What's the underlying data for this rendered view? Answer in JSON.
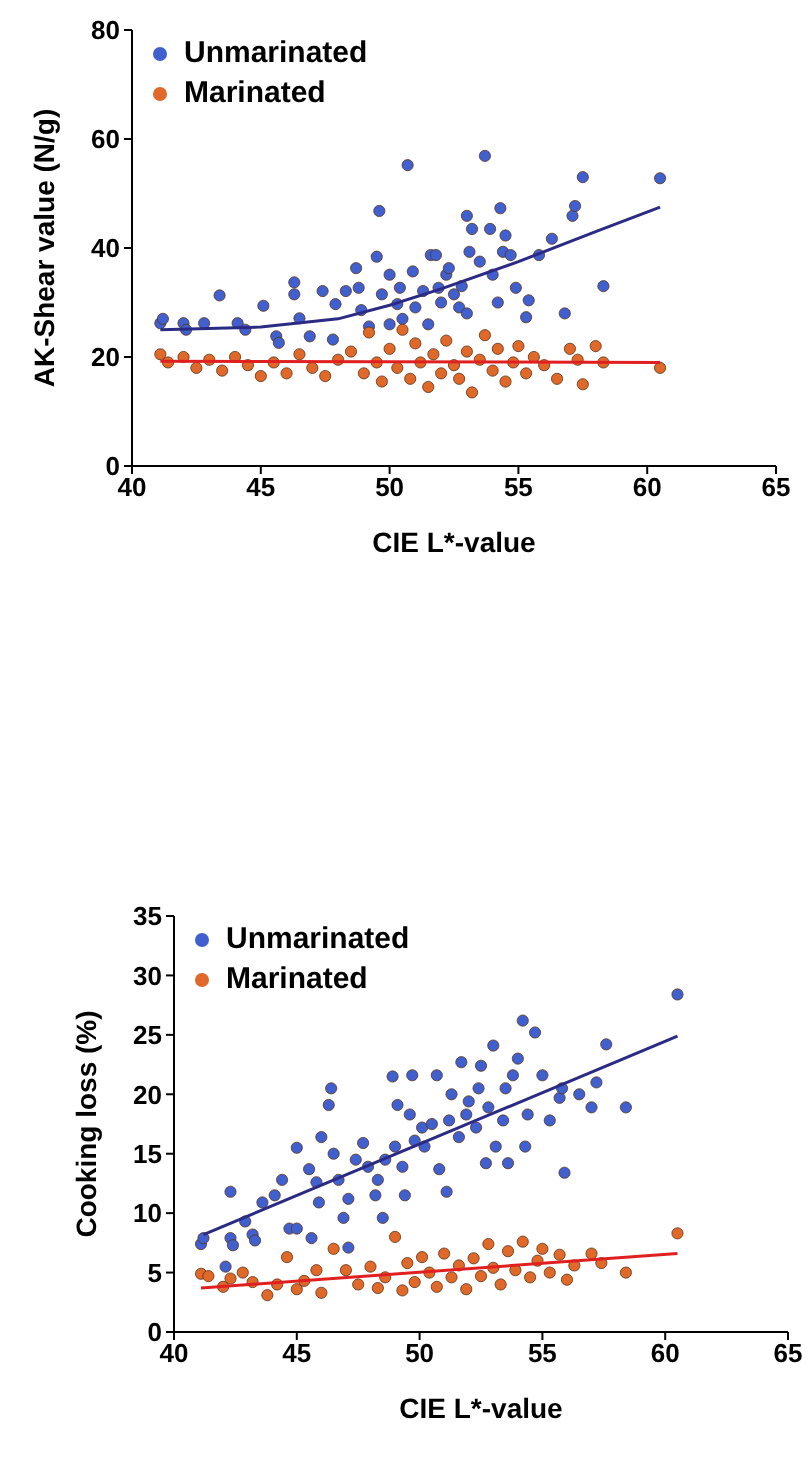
{
  "chart_data": [
    {
      "type": "scatter",
      "xlabel": "CIE L*-value",
      "ylabel": "AK-Shear value (N/g)",
      "xlim": [
        40,
        65
      ],
      "xticks": [
        40,
        45,
        50,
        55,
        60,
        65
      ],
      "ylim": [
        0,
        80
      ],
      "yticks": [
        0,
        20,
        40,
        60,
        80
      ],
      "grid": false,
      "legend": "top left",
      "series": [
        {
          "name": "Unmarinated",
          "marker": "circle",
          "color": "#4060d0",
          "x": [
            41.1,
            41.2,
            42.0,
            42.1,
            42.8,
            43.4,
            44.1,
            44.4,
            45.1,
            45.6,
            45.7,
            46.3,
            46.3,
            46.5,
            46.9,
            47.4,
            47.8,
            47.9,
            48.3,
            48.7,
            48.8,
            48.9,
            49.2,
            49.5,
            49.6,
            49.7,
            50.0,
            50.3,
            50.4,
            50.7,
            50.9,
            51.0,
            51.3,
            51.6,
            51.8,
            51.9,
            52.2,
            52.3,
            52.5,
            52.7,
            53.0,
            53.1,
            53.2,
            53.5,
            53.7,
            53.9,
            54.0,
            54.3,
            54.4,
            54.5,
            54.7,
            54.9,
            55.3,
            55.4,
            55.8,
            56.3,
            56.8,
            57.1,
            57.2,
            57.5,
            58.3,
            60.5,
            50.5,
            51.5,
            52.0,
            53.0,
            50.0,
            52.8,
            54.2
          ],
          "values": [
            26.2,
            27.0,
            26.2,
            25.0,
            26.2,
            31.3,
            26.2,
            25.0,
            29.4,
            23.8,
            22.6,
            33.7,
            31.5,
            27.1,
            23.8,
            32.1,
            23.2,
            29.7,
            32.1,
            36.3,
            32.7,
            28.6,
            25.6,
            38.4,
            46.8,
            31.5,
            35.1,
            29.7,
            32.7,
            55.2,
            35.7,
            29.1,
            32.1,
            38.7,
            38.7,
            32.7,
            35.1,
            36.3,
            31.5,
            29.1,
            45.9,
            39.3,
            43.5,
            37.5,
            56.9,
            43.5,
            35.1,
            47.3,
            39.3,
            42.3,
            38.7,
            32.7,
            27.3,
            30.4,
            38.7,
            41.7,
            28.0,
            45.9,
            47.7,
            53.0,
            33.0,
            52.8,
            27.0,
            26.0,
            30.0,
            28.0,
            26.0,
            33.0,
            30.0
          ]
        },
        {
          "name": "Marinated",
          "marker": "circle",
          "color": "#e0692a",
          "x": [
            41.1,
            41.4,
            42.0,
            42.5,
            43.0,
            43.5,
            44.0,
            44.5,
            45.0,
            45.5,
            46.0,
            46.5,
            47.0,
            47.5,
            48.0,
            48.5,
            49.0,
            49.2,
            49.5,
            49.7,
            50.0,
            50.3,
            50.5,
            50.8,
            51.0,
            51.2,
            51.5,
            51.7,
            52.0,
            52.2,
            52.5,
            52.7,
            53.0,
            53.2,
            53.5,
            53.7,
            54.0,
            54.2,
            54.5,
            54.8,
            55.0,
            55.3,
            55.6,
            56.0,
            56.5,
            57.0,
            57.3,
            57.5,
            58.0,
            58.3,
            60.5
          ],
          "values": [
            20.5,
            19.0,
            20.0,
            18.0,
            19.5,
            17.5,
            20.0,
            18.5,
            16.5,
            19.0,
            17.0,
            20.5,
            18.0,
            16.5,
            19.5,
            21.0,
            17.0,
            24.5,
            19.0,
            15.5,
            21.5,
            18.0,
            25.0,
            16.0,
            22.5,
            19.0,
            14.5,
            20.5,
            17.0,
            23.0,
            18.5,
            16.0,
            21.0,
            13.5,
            19.5,
            24.0,
            17.5,
            21.5,
            15.5,
            19.0,
            22.0,
            17.0,
            20.0,
            18.5,
            16.0,
            21.5,
            19.5,
            15.0,
            22.0,
            19.0,
            18.0
          ]
        },
        {
          "type": "line",
          "marker": "none",
          "color": "#2b2b85",
          "x": [
            41.1,
            45,
            48,
            50,
            52,
            55,
            58,
            60.5
          ],
          "values": [
            25,
            25.5,
            27,
            29.5,
            32.5,
            37.5,
            43,
            47.5
          ]
        },
        {
          "type": "line",
          "marker": "none",
          "color": "#e02020",
          "x": [
            41.1,
            60.5
          ],
          "values": [
            19.2,
            19.0
          ]
        }
      ]
    },
    {
      "type": "scatter",
      "xlabel": "CIE L*-value",
      "ylabel": "Cooking loss (%)",
      "xlim": [
        40,
        65
      ],
      "xticks": [
        40,
        45,
        50,
        55,
        60,
        65
      ],
      "ylim": [
        0,
        35
      ],
      "yticks": [
        0,
        5,
        10,
        15,
        20,
        25,
        30,
        35
      ],
      "grid": false,
      "legend": "top left",
      "series": [
        {
          "name": "Unmarinated",
          "marker": "circle",
          "color": "#4060d0",
          "x": [
            41.1,
            41.2,
            42.3,
            42.3,
            42.4,
            42.1,
            42.9,
            43.2,
            43.3,
            43.6,
            44.1,
            44.4,
            44.7,
            45.0,
            45.0,
            45.5,
            45.6,
            45.8,
            45.9,
            46.0,
            46.3,
            46.4,
            46.5,
            46.7,
            46.9,
            47.1,
            47.1,
            47.4,
            47.7,
            47.9,
            48.2,
            48.3,
            48.5,
            48.6,
            48.9,
            49.0,
            49.1,
            49.3,
            49.4,
            49.6,
            49.7,
            49.8,
            50.1,
            50.2,
            50.5,
            50.7,
            50.8,
            51.1,
            51.2,
            51.3,
            51.6,
            51.7,
            51.9,
            52.0,
            52.3,
            52.4,
            52.5,
            52.7,
            52.8,
            53.0,
            53.1,
            53.4,
            53.5,
            53.6,
            53.8,
            54.0,
            54.2,
            54.3,
            54.4,
            54.7,
            55.0,
            55.3,
            55.7,
            55.8,
            55.9,
            56.5,
            57.0,
            57.2,
            57.6,
            58.4,
            60.5
          ],
          "values": [
            7.4,
            7.9,
            11.8,
            7.9,
            7.3,
            5.5,
            9.3,
            8.2,
            7.7,
            10.9,
            11.5,
            12.8,
            8.7,
            8.7,
            15.5,
            13.7,
            7.9,
            12.6,
            10.9,
            16.4,
            19.1,
            20.5,
            15.0,
            12.8,
            9.6,
            7.1,
            11.2,
            14.5,
            15.9,
            13.9,
            11.5,
            12.8,
            9.6,
            14.5,
            21.5,
            15.6,
            19.1,
            13.9,
            11.5,
            18.3,
            21.6,
            16.1,
            17.2,
            15.6,
            17.5,
            21.6,
            13.7,
            11.8,
            17.8,
            20.0,
            16.4,
            22.7,
            18.3,
            19.4,
            17.2,
            20.5,
            22.4,
            14.2,
            18.9,
            24.1,
            15.6,
            17.8,
            20.5,
            14.2,
            21.6,
            23.0,
            26.2,
            15.6,
            18.3,
            25.2,
            21.6,
            17.8,
            19.7,
            20.5,
            13.4,
            20.0,
            18.9,
            21.0,
            24.2,
            18.9,
            28.4
          ]
        },
        {
          "name": "Marinated",
          "marker": "circle",
          "color": "#e0692a",
          "x": [
            41.1,
            41.4,
            42.0,
            42.3,
            42.8,
            43.2,
            43.8,
            44.2,
            44.6,
            45.0,
            45.3,
            45.8,
            46.0,
            46.5,
            47.0,
            47.5,
            48.0,
            48.3,
            48.6,
            49.0,
            49.3,
            49.5,
            49.8,
            50.1,
            50.4,
            50.7,
            51.0,
            51.3,
            51.6,
            51.9,
            52.2,
            52.5,
            52.8,
            53.0,
            53.3,
            53.6,
            53.9,
            54.2,
            54.5,
            54.8,
            55.0,
            55.3,
            55.7,
            56.0,
            56.3,
            57.0,
            57.4,
            58.4,
            60.5
          ],
          "values": [
            4.9,
            4.7,
            3.8,
            4.5,
            5.0,
            4.2,
            3.1,
            4.0,
            6.3,
            3.6,
            4.3,
            5.2,
            3.3,
            7.0,
            5.2,
            4.0,
            5.5,
            3.7,
            4.6,
            8.0,
            3.5,
            5.8,
            4.2,
            6.3,
            5.0,
            3.8,
            6.6,
            4.6,
            5.6,
            3.6,
            6.2,
            4.7,
            7.4,
            5.4,
            4.0,
            6.8,
            5.2,
            7.6,
            4.6,
            6.0,
            7.0,
            5.0,
            6.5,
            4.4,
            5.6,
            6.6,
            5.8,
            5.0,
            8.3
          ]
        },
        {
          "type": "line",
          "marker": "none",
          "color": "#2b2b85",
          "x": [
            41.2,
            60.5
          ],
          "values": [
            8.2,
            24.9
          ]
        },
        {
          "type": "line",
          "marker": "none",
          "color": "#e02020",
          "x": [
            41.1,
            60.5
          ],
          "values": [
            3.7,
            6.6
          ]
        }
      ]
    }
  ]
}
